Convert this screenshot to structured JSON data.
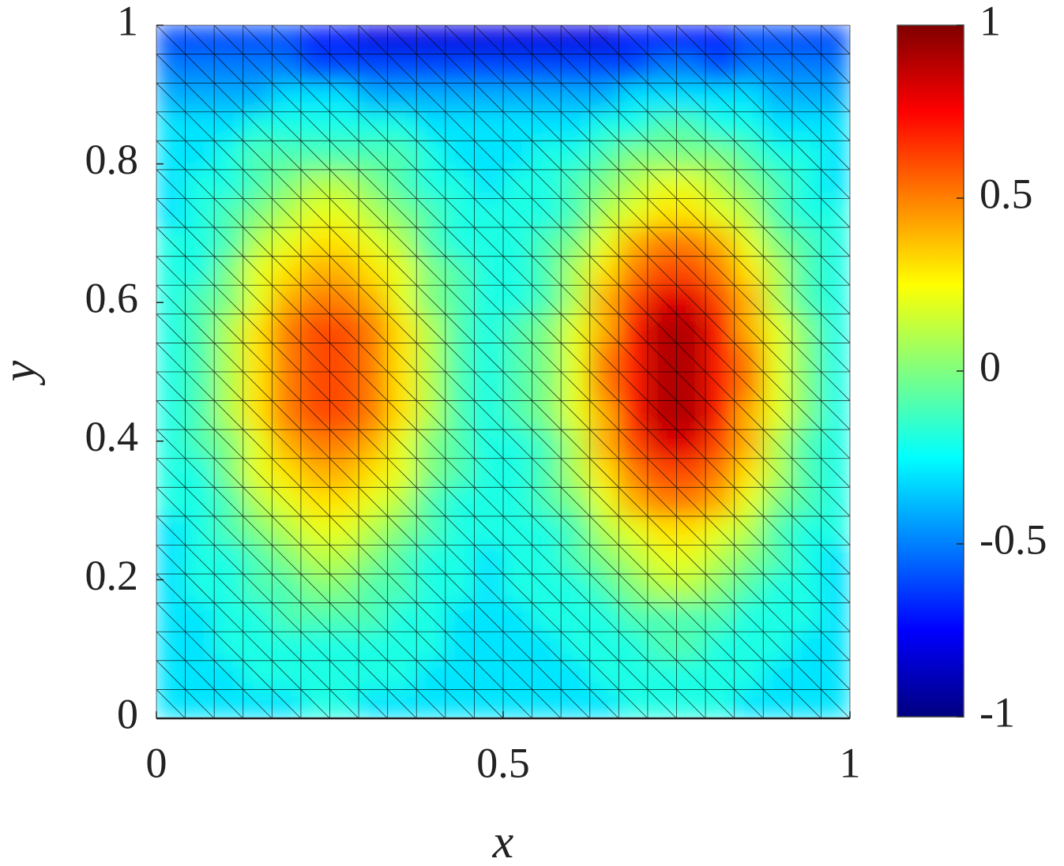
{
  "chart_data": {
    "type": "mesh",
    "xlabel": "x",
    "ylabel": "y",
    "xlim": [
      0,
      1
    ],
    "ylim": [
      0,
      1
    ],
    "xticks": [
      0,
      0.5,
      1
    ],
    "yticks": [
      0,
      0.2,
      0.4,
      0.6,
      0.8,
      1
    ],
    "clim": [
      -1,
      1
    ],
    "cticks": [
      -1,
      -0.5,
      0,
      0.5,
      1
    ],
    "colormap": "jet",
    "mesh_color": "#000000",
    "z": [
      [
        -0.3,
        -0.3,
        -0.3,
        -0.3,
        -0.3,
        -0.2,
        -0.2,
        -0.3,
        -0.3,
        -0.3,
        -0.3,
        -0.3,
        -0.3,
        -0.3,
        -0.3,
        -0.3,
        -0.2,
        -0.2,
        -0.2,
        -0.2,
        -0.3,
        -0.3,
        -0.3,
        -0.3
      ],
      [
        -0.3,
        -0.3,
        -0.3,
        -0.2,
        -0.2,
        -0.2,
        -0.2,
        -0.2,
        -0.2,
        -0.3,
        -0.3,
        -0.3,
        -0.3,
        -0.3,
        -0.3,
        -0.2,
        -0.2,
        -0.2,
        -0.2,
        -0.2,
        -0.2,
        -0.3,
        -0.3,
        -0.3
      ],
      [
        -0.3,
        -0.3,
        -0.2,
        -0.2,
        -0.2,
        -0.2,
        -0.2,
        -0.2,
        -0.2,
        -0.2,
        -0.3,
        -0.3,
        -0.3,
        -0.3,
        -0.2,
        -0.2,
        -0.2,
        -0.1,
        -0.1,
        -0.2,
        -0.2,
        -0.2,
        -0.3,
        -0.3
      ],
      [
        -0.3,
        -0.3,
        -0.2,
        -0.2,
        -0.1,
        -0.1,
        -0.1,
        -0.1,
        -0.2,
        -0.2,
        -0.3,
        -0.3,
        -0.3,
        -0.2,
        -0.2,
        -0.2,
        -0.1,
        -0.1,
        -0.1,
        -0.1,
        -0.2,
        -0.2,
        -0.2,
        -0.3
      ],
      [
        -0.3,
        -0.2,
        -0.2,
        -0.1,
        -0.1,
        0.0,
        0.0,
        -0.1,
        -0.1,
        -0.2,
        -0.2,
        -0.3,
        -0.2,
        -0.2,
        -0.2,
        -0.1,
        0.0,
        0.1,
        0.1,
        0.0,
        -0.1,
        -0.2,
        -0.2,
        -0.3
      ],
      [
        -0.3,
        -0.2,
        -0.2,
        -0.1,
        0.0,
        0.1,
        0.1,
        0.0,
        -0.1,
        -0.2,
        -0.2,
        -0.3,
        -0.2,
        -0.2,
        -0.1,
        0.0,
        0.1,
        0.2,
        0.2,
        0.1,
        0.0,
        -0.1,
        -0.2,
        -0.3
      ],
      [
        -0.3,
        -0.2,
        -0.1,
        0.0,
        0.1,
        0.2,
        0.2,
        0.1,
        0.0,
        -0.1,
        -0.2,
        -0.2,
        -0.2,
        -0.2,
        -0.1,
        0.1,
        0.2,
        0.3,
        0.3,
        0.2,
        0.1,
        -0.1,
        -0.2,
        -0.2
      ],
      [
        -0.2,
        -0.2,
        -0.1,
        0.1,
        0.2,
        0.3,
        0.3,
        0.2,
        0.1,
        -0.1,
        -0.2,
        -0.2,
        -0.2,
        -0.1,
        0.0,
        0.2,
        0.4,
        0.5,
        0.5,
        0.4,
        0.2,
        0.0,
        -0.1,
        -0.2
      ],
      [
        -0.2,
        -0.2,
        0.0,
        0.2,
        0.3,
        0.4,
        0.4,
        0.3,
        0.2,
        0.0,
        -0.1,
        -0.2,
        -0.2,
        -0.1,
        0.1,
        0.3,
        0.5,
        0.6,
        0.6,
        0.5,
        0.3,
        0.1,
        -0.1,
        -0.2
      ],
      [
        -0.2,
        -0.1,
        0.0,
        0.2,
        0.4,
        0.5,
        0.5,
        0.4,
        0.2,
        0.0,
        -0.1,
        -0.2,
        -0.2,
        -0.1,
        0.1,
        0.4,
        0.6,
        0.8,
        0.8,
        0.6,
        0.4,
        0.1,
        -0.1,
        -0.2
      ],
      [
        -0.2,
        -0.1,
        0.1,
        0.3,
        0.5,
        0.6,
        0.6,
        0.5,
        0.3,
        0.1,
        -0.1,
        -0.2,
        -0.1,
        0.0,
        0.2,
        0.4,
        0.7,
        0.9,
        0.9,
        0.7,
        0.4,
        0.2,
        0.0,
        -0.2
      ],
      [
        -0.2,
        -0.1,
        0.1,
        0.3,
        0.5,
        0.6,
        0.6,
        0.5,
        0.3,
        0.1,
        -0.1,
        -0.2,
        -0.1,
        0.0,
        0.2,
        0.5,
        0.7,
        0.9,
        0.9,
        0.7,
        0.5,
        0.2,
        0.0,
        -0.2
      ],
      [
        -0.2,
        -0.1,
        0.1,
        0.3,
        0.5,
        0.6,
        0.6,
        0.5,
        0.3,
        0.1,
        -0.1,
        -0.2,
        -0.1,
        0.0,
        0.2,
        0.5,
        0.7,
        0.9,
        0.9,
        0.7,
        0.5,
        0.2,
        0.0,
        -0.2
      ],
      [
        -0.2,
        -0.1,
        0.1,
        0.3,
        0.5,
        0.6,
        0.6,
        0.5,
        0.3,
        0.1,
        -0.1,
        -0.2,
        -0.1,
        0.0,
        0.2,
        0.4,
        0.7,
        0.9,
        0.9,
        0.7,
        0.4,
        0.2,
        0.0,
        -0.2
      ],
      [
        -0.2,
        -0.1,
        0.0,
        0.2,
        0.4,
        0.5,
        0.5,
        0.4,
        0.2,
        0.0,
        -0.1,
        -0.2,
        -0.2,
        -0.1,
        0.1,
        0.4,
        0.6,
        0.8,
        0.8,
        0.6,
        0.4,
        0.1,
        -0.1,
        -0.2
      ],
      [
        -0.2,
        -0.2,
        0.0,
        0.2,
        0.3,
        0.4,
        0.4,
        0.3,
        0.2,
        0.0,
        -0.1,
        -0.2,
        -0.2,
        -0.1,
        0.1,
        0.3,
        0.5,
        0.6,
        0.6,
        0.5,
        0.3,
        0.1,
        -0.1,
        -0.2
      ],
      [
        -0.2,
        -0.2,
        -0.1,
        0.1,
        0.2,
        0.3,
        0.3,
        0.2,
        0.1,
        -0.1,
        -0.2,
        -0.2,
        -0.2,
        -0.1,
        0.0,
        0.2,
        0.4,
        0.5,
        0.5,
        0.4,
        0.2,
        0.0,
        -0.1,
        -0.2
      ],
      [
        -0.3,
        -0.2,
        -0.1,
        0.0,
        0.1,
        0.2,
        0.2,
        0.1,
        0.0,
        -0.1,
        -0.2,
        -0.2,
        -0.2,
        -0.2,
        -0.1,
        0.1,
        0.2,
        0.3,
        0.3,
        0.2,
        0.1,
        -0.1,
        -0.2,
        -0.2
      ],
      [
        -0.3,
        -0.2,
        -0.2,
        -0.1,
        0.0,
        0.1,
        0.1,
        0.0,
        -0.1,
        -0.2,
        -0.2,
        -0.3,
        -0.2,
        -0.2,
        -0.1,
        0.0,
        0.1,
        0.2,
        0.2,
        0.1,
        0.0,
        -0.1,
        -0.2,
        -0.3
      ],
      [
        -0.3,
        -0.3,
        -0.2,
        -0.1,
        -0.1,
        -0.1,
        -0.1,
        -0.1,
        -0.1,
        -0.2,
        -0.3,
        -0.3,
        -0.3,
        -0.2,
        -0.2,
        -0.1,
        0.0,
        0.0,
        0.0,
        0.0,
        -0.1,
        -0.2,
        -0.2,
        -0.3
      ],
      [
        -0.3,
        -0.3,
        -0.3,
        -0.2,
        -0.2,
        -0.2,
        -0.2,
        -0.2,
        -0.2,
        -0.3,
        -0.3,
        -0.3,
        -0.3,
        -0.3,
        -0.3,
        -0.2,
        -0.2,
        -0.1,
        -0.1,
        -0.2,
        -0.2,
        -0.3,
        -0.3,
        -0.3
      ],
      [
        -0.4,
        -0.4,
        -0.4,
        -0.4,
        -0.3,
        -0.3,
        -0.3,
        -0.4,
        -0.4,
        -0.4,
        -0.4,
        -0.4,
        -0.4,
        -0.4,
        -0.4,
        -0.4,
        -0.3,
        -0.3,
        -0.3,
        -0.3,
        -0.3,
        -0.4,
        -0.4,
        -0.4
      ],
      [
        -0.5,
        -0.5,
        -0.5,
        -0.5,
        -0.5,
        -0.6,
        -0.6,
        -0.6,
        -0.6,
        -0.6,
        -0.6,
        -0.6,
        -0.6,
        -0.6,
        -0.6,
        -0.6,
        -0.6,
        -0.5,
        -0.5,
        -0.6,
        -0.5,
        -0.5,
        -0.5,
        -0.5
      ],
      [
        -0.6,
        -0.6,
        -0.6,
        -0.6,
        -0.6,
        -0.7,
        -0.7,
        -0.8,
        -0.8,
        -0.8,
        -0.8,
        -0.8,
        -0.8,
        -0.8,
        -0.8,
        -0.8,
        -0.7,
        -0.7,
        -0.7,
        -0.7,
        -0.6,
        -0.6,
        -0.6,
        -0.6
      ]
    ]
  }
}
